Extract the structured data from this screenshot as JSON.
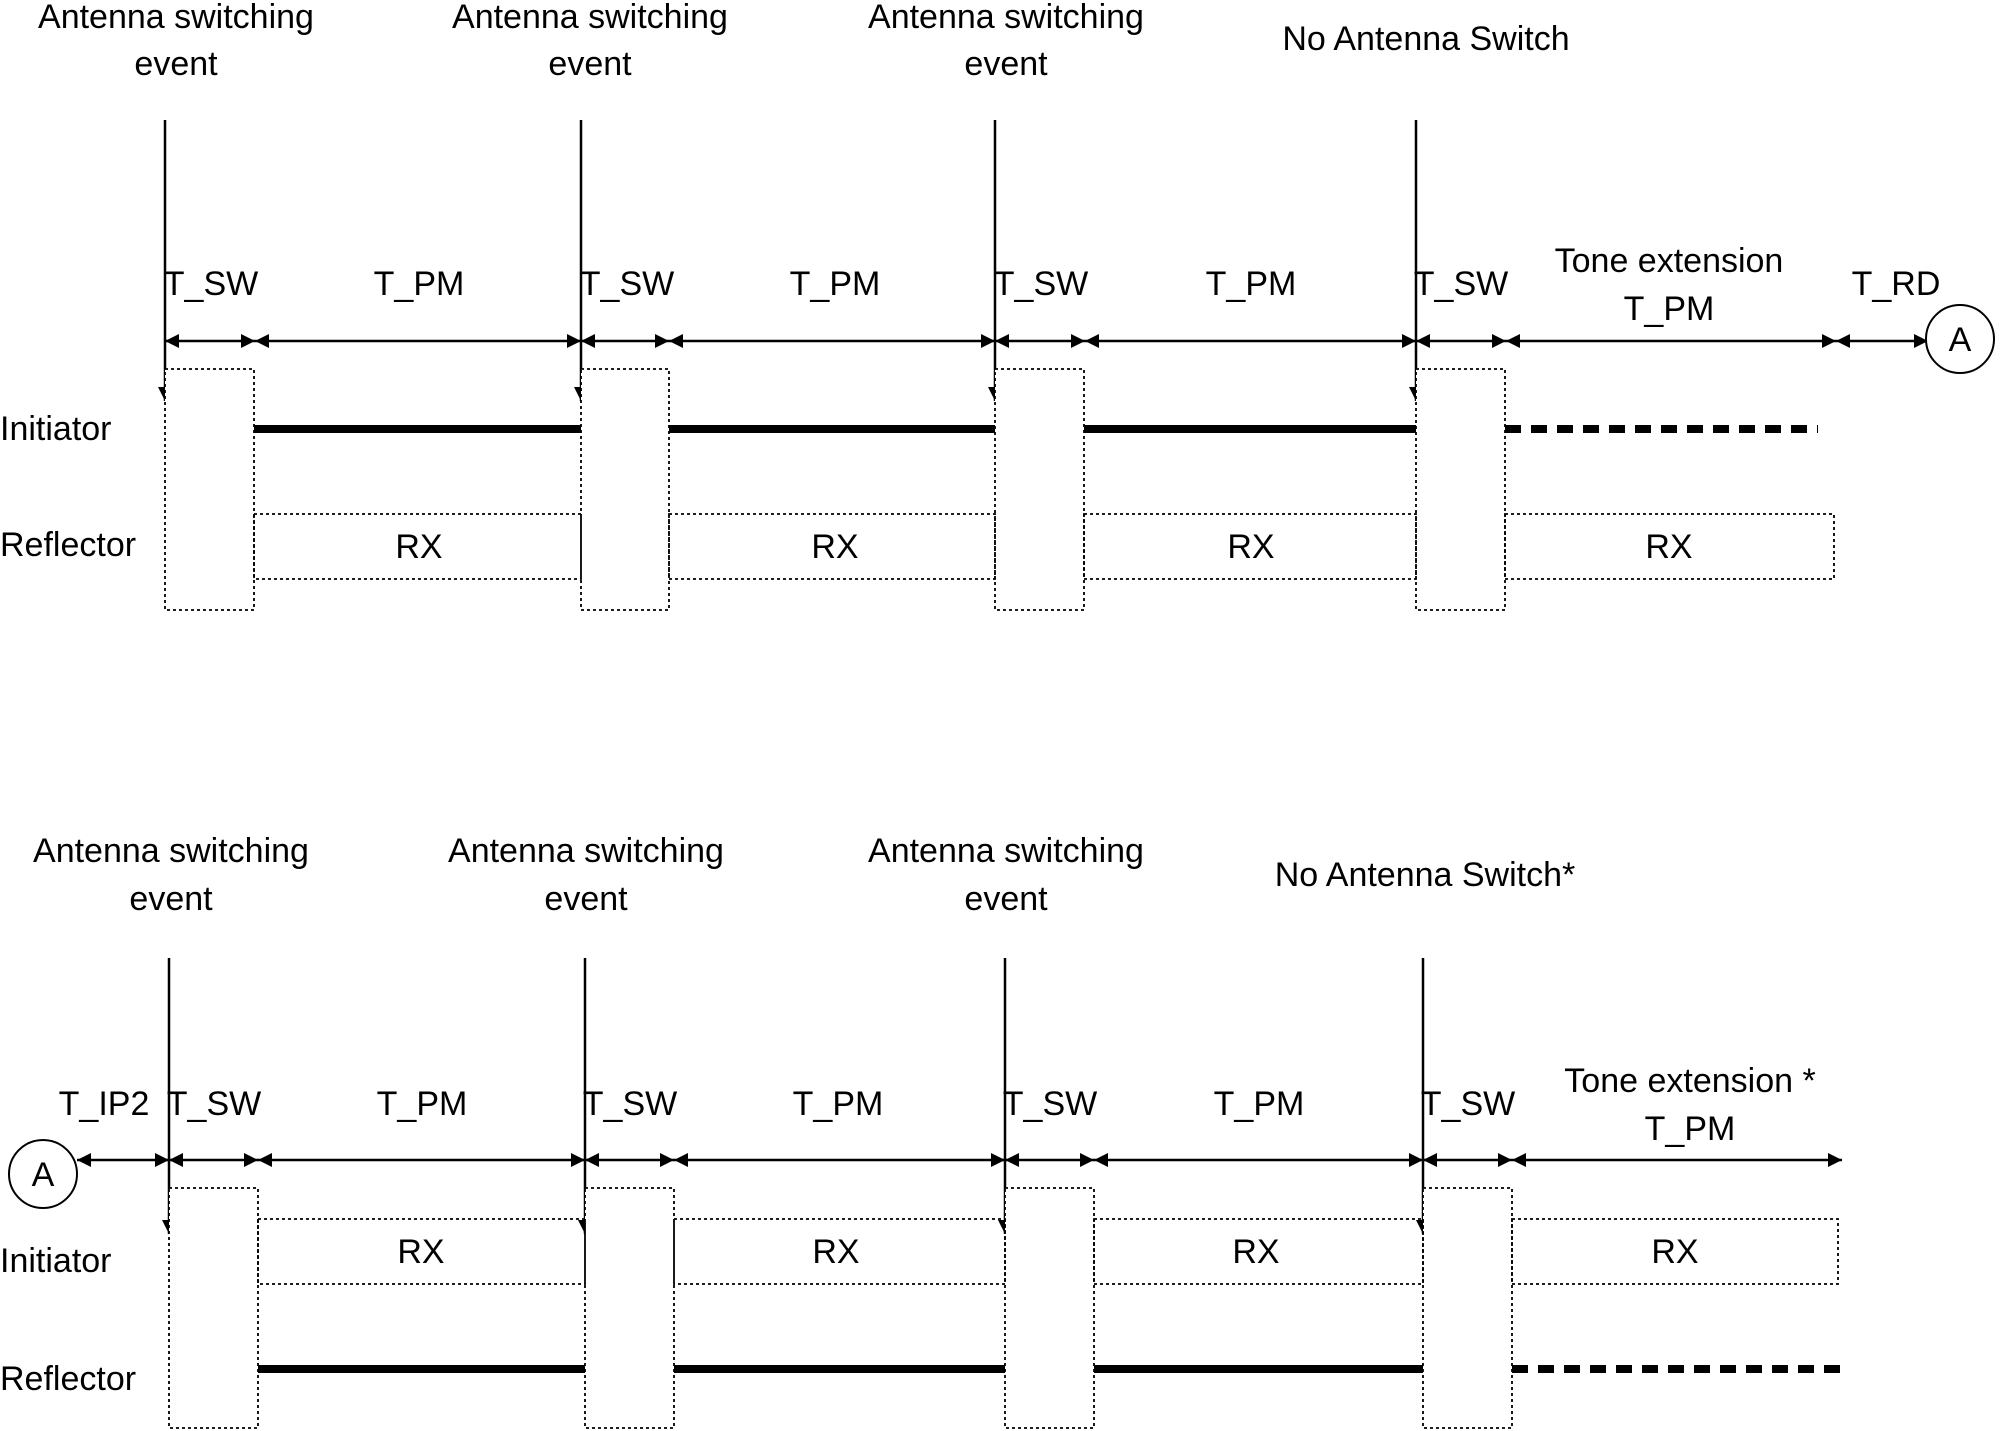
{
  "panels": [
    {
      "id": "top",
      "events": [
        {
          "line1": "Antenna switching",
          "line2": "event"
        },
        {
          "line1": "Antenna switching",
          "line2": "event"
        },
        {
          "line1": "Antenna switching",
          "line2": "event"
        },
        {
          "line1": "No Antenna Switch",
          "line2": ""
        }
      ],
      "intervals": [
        {
          "label": "T_SW"
        },
        {
          "label": "T_PM"
        },
        {
          "label": "T_SW"
        },
        {
          "label": "T_PM"
        },
        {
          "label": "T_SW"
        },
        {
          "label": "T_PM"
        },
        {
          "label": "T_SW"
        },
        {
          "label": "Tone extension",
          "label2": "T_PM"
        },
        {
          "label": "T_RD"
        }
      ],
      "connector": "A",
      "rows": [
        {
          "name": "Initiator",
          "role": "tx"
        },
        {
          "name": "Reflector",
          "role": "rx"
        }
      ],
      "rx_label": "RX"
    },
    {
      "id": "bottom",
      "events": [
        {
          "line1": "Antenna switching",
          "line2": "event"
        },
        {
          "line1": "Antenna switching",
          "line2": "event"
        },
        {
          "line1": "Antenna switching",
          "line2": "event"
        },
        {
          "line1": "No Antenna Switch*",
          "line2": ""
        }
      ],
      "intervals": [
        {
          "label": "T_IP2"
        },
        {
          "label": "T_SW"
        },
        {
          "label": "T_PM"
        },
        {
          "label": "T_SW"
        },
        {
          "label": "T_PM"
        },
        {
          "label": "T_SW"
        },
        {
          "label": "T_PM"
        },
        {
          "label": "T_SW"
        },
        {
          "label": "Tone extension *",
          "label2": "T_PM"
        }
      ],
      "connector": "A",
      "rows": [
        {
          "name": "Initiator",
          "role": "rx"
        },
        {
          "name": "Reflector",
          "role": "tx"
        }
      ],
      "rx_label": "RX"
    }
  ]
}
